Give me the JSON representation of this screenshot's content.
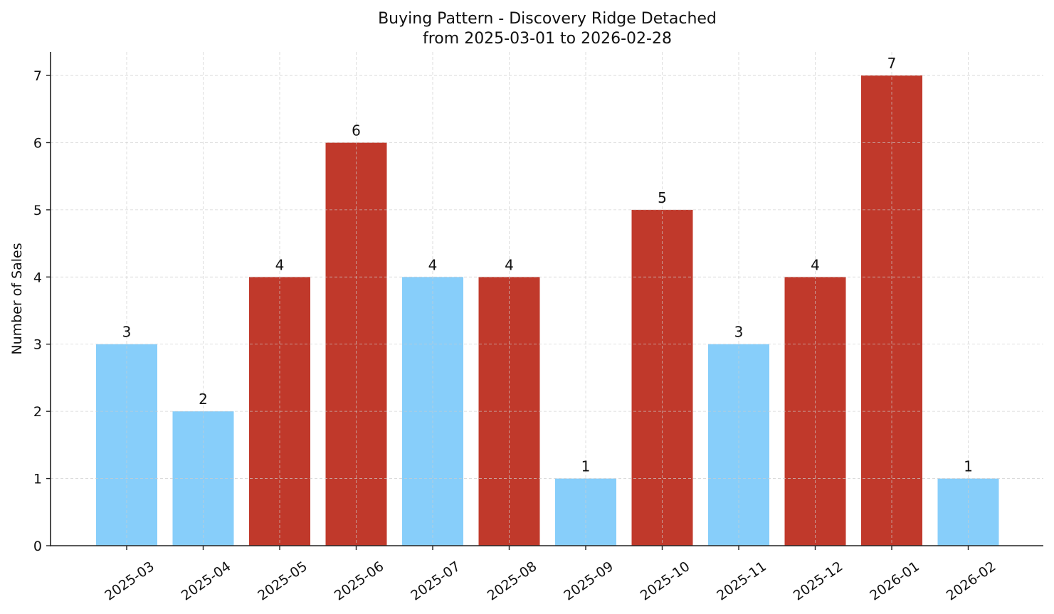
{
  "chart_data": {
    "type": "bar",
    "title": "Buying Pattern - Discovery Ridge Detached",
    "subtitle": "from 2025-03-01 to 2026-02-28",
    "xlabel": "",
    "ylabel": "Number of Sales",
    "categories": [
      "2025-03",
      "2025-04",
      "2025-05",
      "2025-06",
      "2025-07",
      "2025-08",
      "2025-09",
      "2025-10",
      "2025-11",
      "2025-12",
      "2026-01",
      "2026-02"
    ],
    "values": [
      3,
      2,
      4,
      6,
      4,
      4,
      1,
      5,
      3,
      4,
      7,
      1
    ],
    "bar_colors": [
      "#87cefa",
      "#87cefa",
      "#c0392b",
      "#c0392b",
      "#87cefa",
      "#c0392b",
      "#87cefa",
      "#c0392b",
      "#87cefa",
      "#c0392b",
      "#c0392b",
      "#87cefa"
    ],
    "color_legend": {
      "high": "#c0392b",
      "low": "#87cefa"
    },
    "ylim": [
      0,
      7.35
    ],
    "yticks": [
      0,
      1,
      2,
      3,
      4,
      5,
      6,
      7
    ],
    "grid": true,
    "legend": "none",
    "data_labels": true
  }
}
